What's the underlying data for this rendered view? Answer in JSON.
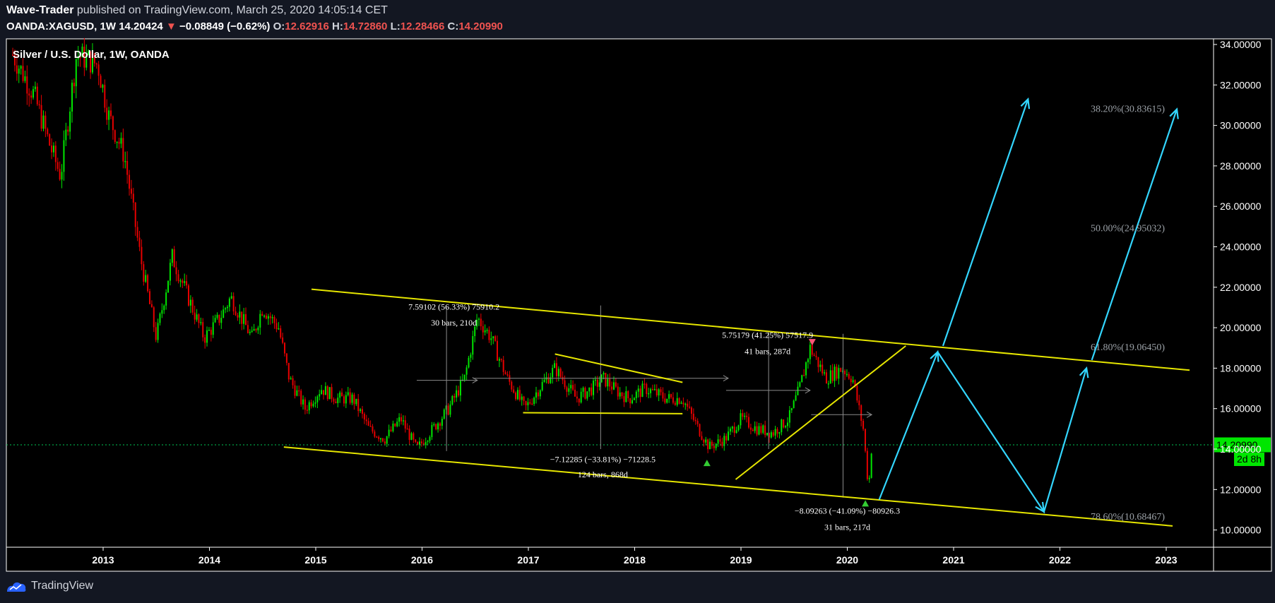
{
  "header": {
    "author": "Wave-Trader",
    "published_text": "published on TradingView.com, March 25, 2020 14:05:14 CET",
    "symbol": "OANDA:XAGUSD, 1W",
    "last_price": "14.20424",
    "change": "−0.08849 (−0.62%)",
    "open_label": "O:",
    "open": "12.62916",
    "high_label": "H:",
    "high": "14.72860",
    "low_label": "L:",
    "low": "12.28466",
    "close_label": "C:",
    "close": "14.20990"
  },
  "chart_title": "Silver / U.S. Dollar, 1W, OANDA",
  "price_tag": {
    "value": "14.20990",
    "countdown": "2d 8h"
  },
  "footer": {
    "brand": "TradingView"
  },
  "colors": {
    "background": "#000000",
    "page": "#131722",
    "up": "#00e600",
    "down": "#e60000",
    "trendline": "#e6e600",
    "projection": "#33d6ff",
    "current_price": "#00c853"
  },
  "chart_data": {
    "type": "line",
    "title": "Silver / U.S. Dollar, 1W, OANDA",
    "xlabel": "",
    "ylabel": "",
    "x_ticks": [
      "2013",
      "2014",
      "2015",
      "2016",
      "2017",
      "2018",
      "2019",
      "2020",
      "2021",
      "2022",
      "2023"
    ],
    "y_ticks": [
      "34.00000",
      "32.00000",
      "30.00000",
      "28.00000",
      "26.00000",
      "24.00000",
      "22.00000",
      "20.00000",
      "18.00000",
      "16.00000",
      "14.00000",
      "12.00000",
      "10.00000"
    ],
    "ylim": [
      9.2,
      34.5
    ],
    "xlim": [
      2012.1,
      2023.9
    ],
    "current_price": 14.2099,
    "series": [
      {
        "values": [
          [
            2012.15,
            33.5
          ],
          [
            2012.35,
            31.5
          ],
          [
            2012.5,
            29.0
          ],
          [
            2012.6,
            27.5
          ],
          [
            2012.75,
            33.5
          ],
          [
            2012.95,
            33.0
          ],
          [
            2013.05,
            30.5
          ],
          [
            2013.2,
            28.5
          ],
          [
            2013.35,
            23.5
          ],
          [
            2013.5,
            19.5
          ],
          [
            2013.65,
            23.5
          ],
          [
            2013.8,
            21.5
          ],
          [
            2013.95,
            19.5
          ],
          [
            2014.1,
            20.5
          ],
          [
            2014.2,
            21.5
          ],
          [
            2014.4,
            19.5
          ],
          [
            2014.5,
            21.0
          ],
          [
            2014.65,
            20.0
          ],
          [
            2014.75,
            17.5
          ],
          [
            2014.9,
            16.0
          ],
          [
            2015.05,
            17.0
          ],
          [
            2015.2,
            16.5
          ],
          [
            2015.35,
            16.5
          ],
          [
            2015.5,
            15.0
          ],
          [
            2015.65,
            14.5
          ],
          [
            2015.8,
            15.5
          ],
          [
            2015.95,
            14.0
          ],
          [
            2016.1,
            15.0
          ],
          [
            2016.25,
            16.0
          ],
          [
            2016.4,
            17.5
          ],
          [
            2016.52,
            20.5
          ],
          [
            2016.65,
            19.5
          ],
          [
            2016.8,
            17.5
          ],
          [
            2016.97,
            16.0
          ],
          [
            2017.1,
            17.0
          ],
          [
            2017.25,
            18.0
          ],
          [
            2017.45,
            16.5
          ],
          [
            2017.6,
            17.0
          ],
          [
            2017.7,
            17.5
          ],
          [
            2017.85,
            16.8
          ],
          [
            2017.95,
            16.5
          ],
          [
            2018.1,
            17.0
          ],
          [
            2018.3,
            16.5
          ],
          [
            2018.45,
            16.5
          ],
          [
            2018.6,
            15.0
          ],
          [
            2018.7,
            14.1
          ],
          [
            2018.85,
            14.5
          ],
          [
            2019.0,
            15.5
          ],
          [
            2019.15,
            15.0
          ],
          [
            2019.3,
            14.8
          ],
          [
            2019.45,
            15.5
          ],
          [
            2019.55,
            17.0
          ],
          [
            2019.65,
            19.0
          ],
          [
            2019.8,
            17.5
          ],
          [
            2019.95,
            18.0
          ],
          [
            2020.05,
            17.5
          ],
          [
            2020.15,
            15.0
          ],
          [
            2020.2,
            12.0
          ],
          [
            2020.23,
            14.2
          ]
        ]
      }
    ],
    "annotations": [
      {
        "text": "7.59102 (56.33%) 75910.2",
        "x": 2016.3,
        "y": 20.9
      },
      {
        "text": "30 bars, 210d",
        "x": 2016.3,
        "y": 20.1
      },
      {
        "text": "5.75179 (41.25%) 57517.9",
        "x": 2019.25,
        "y": 19.5
      },
      {
        "text": "41 bars, 287d",
        "x": 2019.25,
        "y": 18.7
      },
      {
        "text": "−7.12285 (−33.81%) −71228.5",
        "x": 2017.7,
        "y": 13.35
      },
      {
        "text": "124 bars, 868d",
        "x": 2017.7,
        "y": 12.6
      },
      {
        "text": "−8.09263 (−41.09%) −80926.3",
        "x": 2020.0,
        "y": 10.8
      },
      {
        "text": "31 bars, 217d",
        "x": 2020.0,
        "y": 10.0
      }
    ],
    "fib_levels": [
      {
        "label": "38.20%(30.83615)",
        "value": 30.83615
      },
      {
        "label": "50.00%(24.95032)",
        "value": 24.95032
      },
      {
        "label": "61.80%(19.06450)",
        "value": 19.0645
      },
      {
        "label": "78.60%(10.68467)",
        "value": 10.68467
      }
    ],
    "trendlines": [
      {
        "name": "upper channel",
        "points": [
          [
            2014.96,
            21.9
          ],
          [
            2023.22,
            17.9
          ]
        ]
      },
      {
        "name": "lower channel",
        "points": [
          [
            2014.7,
            14.1
          ],
          [
            2023.06,
            10.2
          ]
        ]
      },
      {
        "name": "triangle top",
        "points": [
          [
            2017.25,
            18.7
          ],
          [
            2018.45,
            17.3
          ]
        ]
      },
      {
        "name": "triangle base",
        "points": [
          [
            2016.95,
            15.8
          ],
          [
            2018.45,
            15.75
          ]
        ]
      },
      {
        "name": "rising wedge",
        "points": [
          [
            2018.95,
            12.5
          ],
          [
            2020.55,
            19.1
          ]
        ]
      }
    ],
    "projection": [
      [
        2020.3,
        11.5
      ],
      [
        2020.85,
        18.8
      ],
      [
        2021.85,
        10.9
      ],
      [
        2022.25,
        18.0
      ]
    ],
    "projection_targets": [
      {
        "from": [
          2020.9,
          19.1
        ],
        "to": [
          2021.7,
          31.3
        ]
      },
      {
        "from": [
          2022.3,
          18.4
        ],
        "to": [
          2023.1,
          30.8
        ]
      }
    ],
    "markers": [
      {
        "type": "triangle-up",
        "x": 2018.68,
        "y": 13.3
      },
      {
        "type": "triangle-up",
        "x": 2020.17,
        "y": 11.3
      },
      {
        "type": "triangle-down",
        "x": 2019.67,
        "y": 19.3
      }
    ],
    "grid": false,
    "legend": "none"
  }
}
